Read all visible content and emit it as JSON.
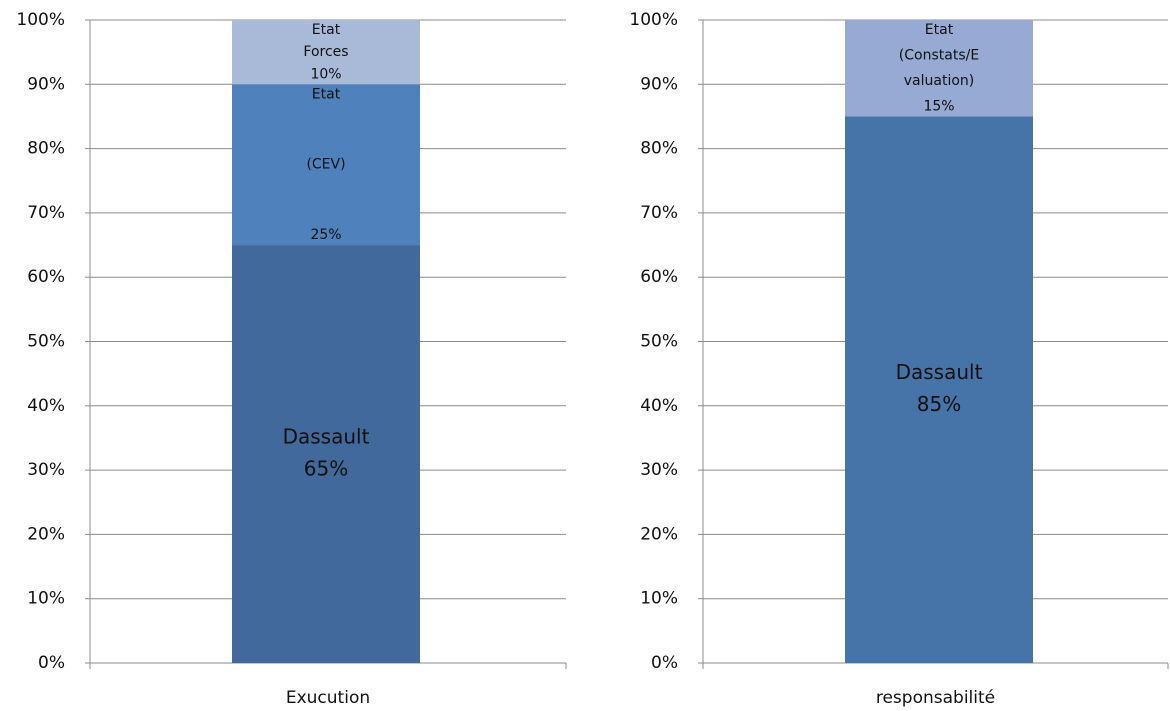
{
  "chart_data": [
    {
      "type": "stacked_bar",
      "categories": [
        "Exucution"
      ],
      "series": [
        {
          "name": "Dassault",
          "color": "#41699b",
          "values": [
            65
          ],
          "value_labels": [
            "65%"
          ]
        },
        {
          "name": "Etat (CEV)",
          "color": "#4f81bd",
          "values": [
            25
          ],
          "value_labels": [
            "25%"
          ]
        },
        {
          "name": "Etat Forces",
          "color": "#a9bad9",
          "values": [
            10
          ],
          "value_labels": [
            "10%"
          ]
        }
      ],
      "ylim": [
        0,
        100
      ],
      "yticks": [
        {
          "value": 0,
          "label": "0%"
        },
        {
          "value": 10,
          "label": "10%"
        },
        {
          "value": 20,
          "label": "20%"
        },
        {
          "value": 30,
          "label": "30%"
        },
        {
          "value": 40,
          "label": "40%"
        },
        {
          "value": 50,
          "label": "50%"
        },
        {
          "value": 60,
          "label": "60%"
        },
        {
          "value": 70,
          "label": "70%"
        },
        {
          "value": 80,
          "label": "80%"
        },
        {
          "value": 90,
          "label": "90%"
        },
        {
          "value": 100,
          "label": "100%"
        }
      ],
      "grid": true
    },
    {
      "type": "stacked_bar",
      "categories": [
        "responsabilité"
      ],
      "series": [
        {
          "name": "Dassault",
          "color": "#4674a8",
          "values": [
            85
          ],
          "value_labels": [
            "85%"
          ]
        },
        {
          "name": "Etat (Constats/Evaluation)",
          "color": "#96aad3",
          "values": [
            15
          ],
          "value_labels": [
            "15%"
          ]
        }
      ],
      "ylim": [
        0,
        100
      ],
      "yticks": [
        {
          "value": 0,
          "label": "0%"
        },
        {
          "value": 10,
          "label": "10%"
        },
        {
          "value": 20,
          "label": "20%"
        },
        {
          "value": 30,
          "label": "30%"
        },
        {
          "value": 40,
          "label": "40%"
        },
        {
          "value": 50,
          "label": "50%"
        },
        {
          "value": 60,
          "label": "60%"
        },
        {
          "value": 70,
          "label": "70%"
        },
        {
          "value": 80,
          "label": "80%"
        },
        {
          "value": 90,
          "label": "90%"
        },
        {
          "value": 100,
          "label": "100%"
        }
      ],
      "grid": true
    }
  ]
}
